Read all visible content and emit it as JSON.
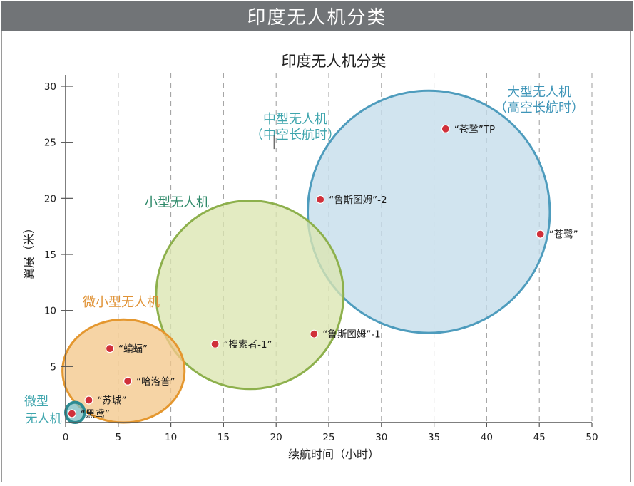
{
  "banner_title": "印度无人机分类",
  "chart_data": {
    "type": "scatter",
    "title": "印度无人机分类",
    "xlabel": "续航时间（小时）",
    "ylabel": "翼展（米）",
    "xlim": [
      0,
      50
    ],
    "ylim": [
      0,
      30
    ],
    "x_ticks": [
      0,
      5,
      10,
      15,
      20,
      25,
      30,
      35,
      40,
      45,
      50
    ],
    "y_ticks": [
      5,
      10,
      15,
      20,
      25,
      30
    ],
    "grid": "vertical-dashed",
    "categories": [
      {
        "name": "大型无人机",
        "subname": "（高空长航时）",
        "cx": 34.5,
        "cy": 18.8,
        "rx": 11.5,
        "ry": 10.8,
        "fill": "#c4dcea",
        "stroke": "#4e9cbd",
        "label_color": "#3e95b8"
      },
      {
        "name": "小型无人机",
        "subname": "",
        "cx": 17.5,
        "cy": 11.4,
        "rx": 8.9,
        "ry": 8.4,
        "fill": "#dbe5b1",
        "stroke": "#8db04c",
        "label_color": "#2f8a6a"
      },
      {
        "name": "微小型无人机",
        "subname": "",
        "cx": 5.5,
        "cy": 4.6,
        "rx": 5.8,
        "ry": 4.6,
        "fill": "#f3c88c",
        "stroke": "#e4972f",
        "label_color": "#e09235"
      },
      {
        "name": "微型",
        "subname": "无人机",
        "cx": 0.9,
        "cy": 0.9,
        "rx": 0.9,
        "ry": 0.9,
        "fill": "#7fbfc4",
        "stroke": "#2c8b92",
        "label_color": "#3ea5ad"
      },
      {
        "name": "中型无人机",
        "subname": "（中空长航时）",
        "cx": null,
        "cy": null,
        "rx": 0,
        "ry": 0,
        "fill": "none",
        "stroke": "none",
        "label_color": "#3ea5ad"
      }
    ],
    "points": [
      {
        "label": "“苍鹭”TP",
        "x": 36.1,
        "y": 26.2
      },
      {
        "label": "“鲁斯图姆”-2",
        "x": 24.2,
        "y": 19.9
      },
      {
        "label": "“苍鹭”",
        "x": 45.1,
        "y": 16.8
      },
      {
        "label": "“鲁斯图姆”-1",
        "x": 23.6,
        "y": 7.9
      },
      {
        "label": "“搜索者-1”",
        "x": 14.2,
        "y": 7.0
      },
      {
        "label": "“蝙蝠”",
        "x": 4.2,
        "y": 6.6
      },
      {
        "label": "“哈洛普”",
        "x": 5.9,
        "y": 3.7
      },
      {
        "label": "“苏城”",
        "x": 2.2,
        "y": 2.0
      },
      {
        "label": "“黑鸢”",
        "x": 0.6,
        "y": 0.8
      }
    ],
    "point_color": "#d0303a"
  }
}
